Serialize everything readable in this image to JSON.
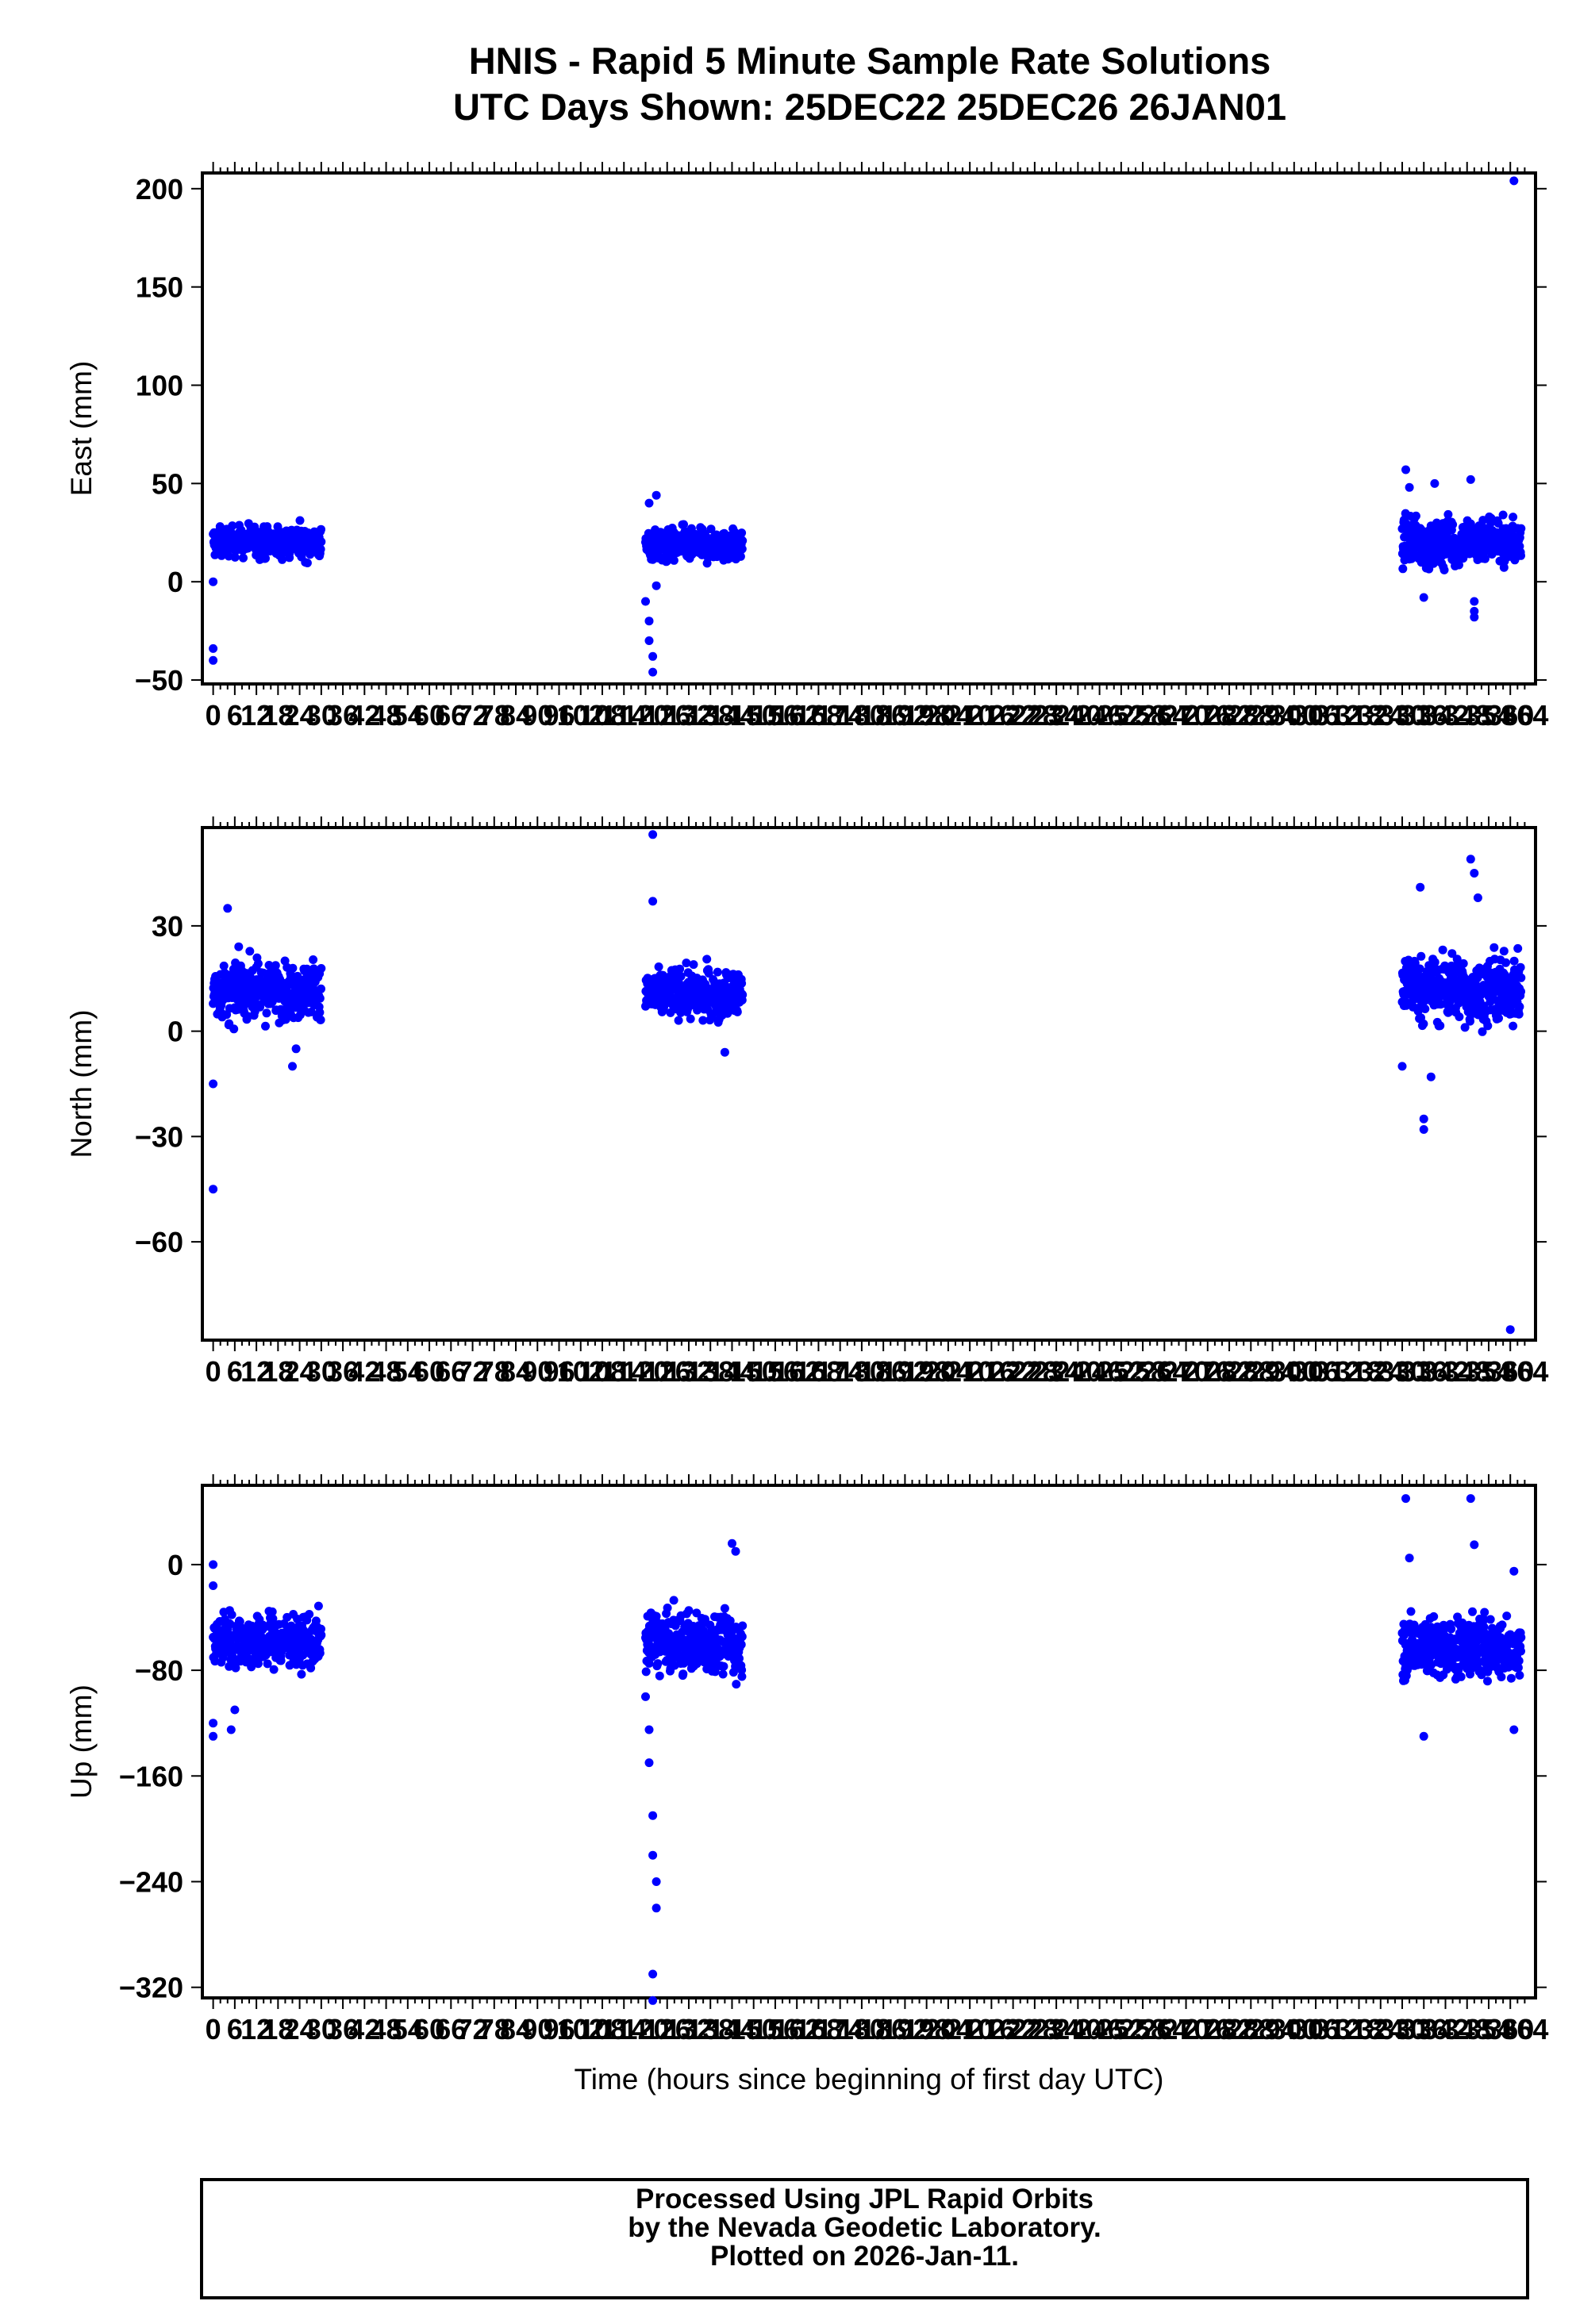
{
  "title": {
    "line1": "HNIS - Rapid 5 Minute Sample Rate Solutions",
    "line2": "UTC Days Shown:  25DEC22 25DEC26 26JAN01"
  },
  "footer": {
    "line1": "Processed Using JPL Rapid Orbits",
    "line2": "by the Nevada Geodetic Laboratory.",
    "line3": "Plotted on 2026-Jan-11."
  },
  "colors": {
    "points": "#0000ff",
    "axis": "#000000"
  },
  "chart_data": [
    {
      "type": "scatter",
      "ylabel": "East (mm)",
      "xlabel": "",
      "xlim": [
        -3,
        367
      ],
      "ylim": [
        -52,
        208
      ],
      "yticks": [
        -50,
        0,
        50,
        100,
        150,
        200
      ],
      "xticks": [
        0,
        6,
        12,
        18,
        24,
        30,
        36,
        42,
        48,
        54,
        60,
        66,
        72,
        78,
        84,
        90,
        96,
        102,
        108,
        114,
        120,
        126,
        132,
        138,
        144,
        150,
        156,
        162,
        168,
        174,
        180,
        186,
        192,
        198,
        204,
        210,
        216,
        222,
        228,
        234,
        240,
        246,
        252,
        258,
        264,
        270,
        276,
        282,
        288,
        294,
        300,
        306,
        312,
        318,
        324,
        330,
        336,
        342,
        348,
        354,
        360,
        364
      ],
      "segments": [
        {
          "t0": 0,
          "t1": 30,
          "mean": 20,
          "spread": 7
        },
        {
          "t0": 120,
          "t1": 147,
          "mean": 18,
          "spread": 7
        },
        {
          "t0": 330,
          "t1": 363,
          "mean": 20,
          "spread": 10
        }
      ],
      "outliers": [
        [
          0,
          -34
        ],
        [
          0,
          -40
        ],
        [
          0,
          0
        ],
        [
          120,
          -10
        ],
        [
          121,
          -20
        ],
        [
          121,
          -30
        ],
        [
          122,
          -38
        ],
        [
          122,
          -46
        ],
        [
          121,
          40
        ],
        [
          123,
          44
        ],
        [
          123,
          -2
        ],
        [
          331,
          57
        ],
        [
          332,
          48
        ],
        [
          336,
          -8
        ],
        [
          339,
          50
        ],
        [
          349,
          52
        ],
        [
          350,
          -15
        ],
        [
          350,
          -18
        ],
        [
          350,
          -10
        ],
        [
          358,
          34
        ],
        [
          361,
          204
        ]
      ]
    },
    {
      "type": "scatter",
      "ylabel": "North (mm)",
      "xlabel": "",
      "xlim": [
        -3,
        367
      ],
      "ylim": [
        -88,
        58
      ],
      "yticks": [
        -60,
        -30,
        0,
        30
      ],
      "xticks": [
        0,
        6,
        12,
        18,
        24,
        30,
        36,
        42,
        48,
        54,
        60,
        66,
        72,
        78,
        84,
        90,
        96,
        102,
        108,
        114,
        120,
        126,
        132,
        138,
        144,
        150,
        156,
        162,
        168,
        174,
        180,
        186,
        192,
        198,
        204,
        210,
        216,
        222,
        228,
        234,
        240,
        246,
        252,
        258,
        264,
        270,
        276,
        282,
        288,
        294,
        300,
        306,
        312,
        318,
        324,
        330,
        336,
        342,
        348,
        354,
        360,
        364
      ],
      "segments": [
        {
          "t0": 0,
          "t1": 30,
          "mean": 12,
          "spread": 7
        },
        {
          "t0": 120,
          "t1": 147,
          "mean": 11,
          "spread": 6
        },
        {
          "t0": 330,
          "t1": 363,
          "mean": 12,
          "spread": 8
        }
      ],
      "outliers": [
        [
          0,
          -15
        ],
        [
          0,
          -45
        ],
        [
          4,
          35
        ],
        [
          22,
          -10
        ],
        [
          23,
          -5
        ],
        [
          122,
          56
        ],
        [
          122,
          37
        ],
        [
          142,
          -6
        ],
        [
          330,
          -10
        ],
        [
          335,
          41
        ],
        [
          336,
          -25
        ],
        [
          336,
          -28
        ],
        [
          338,
          -13
        ],
        [
          349,
          49
        ],
        [
          350,
          45
        ],
        [
          351,
          38
        ],
        [
          360,
          -85
        ]
      ]
    },
    {
      "type": "scatter",
      "ylabel": "Up (mm)",
      "xlabel": "Time (hours since beginning of first day UTC)",
      "xlim": [
        -3,
        367
      ],
      "ylim": [
        -328,
        60
      ],
      "yticks": [
        -320,
        -240,
        -160,
        -80,
        0
      ],
      "xticks": [
        0,
        6,
        12,
        18,
        24,
        30,
        36,
        42,
        48,
        54,
        60,
        66,
        72,
        78,
        84,
        90,
        96,
        102,
        108,
        114,
        120,
        126,
        132,
        138,
        144,
        150,
        156,
        162,
        168,
        174,
        180,
        186,
        192,
        198,
        204,
        210,
        216,
        222,
        228,
        234,
        240,
        246,
        252,
        258,
        264,
        270,
        276,
        282,
        288,
        294,
        300,
        306,
        312,
        318,
        324,
        330,
        336,
        342,
        348,
        354,
        360,
        364
      ],
      "segments": [
        {
          "t0": 0,
          "t1": 30,
          "mean": -58,
          "spread": 18
        },
        {
          "t0": 120,
          "t1": 147,
          "mean": -60,
          "spread": 20
        },
        {
          "t0": 330,
          "t1": 363,
          "mean": -62,
          "spread": 20
        }
      ],
      "outliers": [
        [
          0,
          0
        ],
        [
          0,
          -16
        ],
        [
          0,
          -120
        ],
        [
          0,
          -130
        ],
        [
          5,
          -125
        ],
        [
          6,
          -110
        ],
        [
          120,
          -100
        ],
        [
          121,
          -125
        ],
        [
          121,
          -150
        ],
        [
          122,
          -190
        ],
        [
          122,
          -220
        ],
        [
          123,
          -240
        ],
        [
          123,
          -260
        ],
        [
          122,
          -310
        ],
        [
          122,
          -330
        ],
        [
          144,
          16
        ],
        [
          145,
          10
        ],
        [
          331,
          50
        ],
        [
          332,
          5
        ],
        [
          336,
          -130
        ],
        [
          349,
          50
        ],
        [
          350,
          15
        ],
        [
          361,
          -125
        ],
        [
          361,
          -5
        ]
      ]
    }
  ]
}
